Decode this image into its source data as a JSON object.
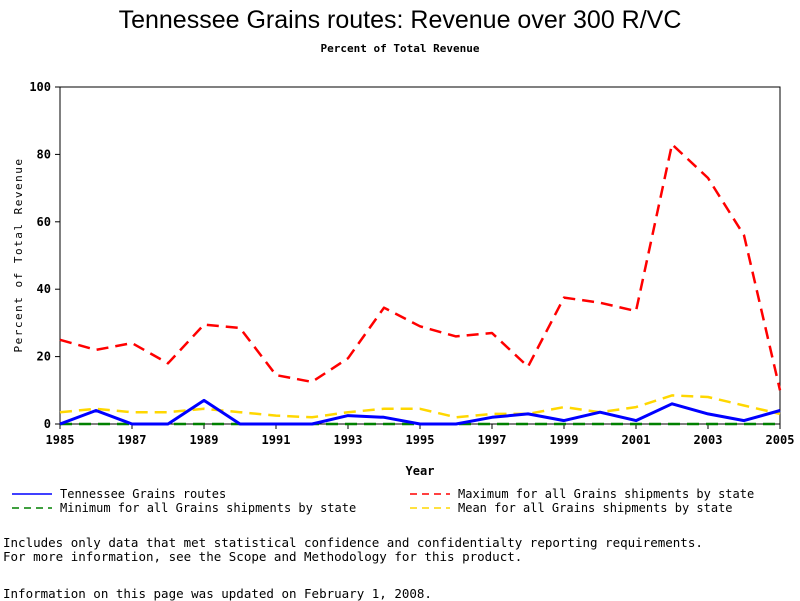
{
  "chart_data": {
    "type": "line",
    "title": "Tennessee Grains routes: Revenue over 300 R/VC",
    "subtitle": "Percent of Total Revenue",
    "xlabel": "Year",
    "ylabel": "Percent of Total Revenue",
    "xlim": [
      1985,
      2005
    ],
    "ylim": [
      0,
      100
    ],
    "x_ticks": [
      1985,
      1987,
      1989,
      1991,
      1993,
      1995,
      1997,
      1999,
      2001,
      2003,
      2005
    ],
    "y_ticks": [
      0,
      20,
      40,
      60,
      80,
      100
    ],
    "x": [
      1985,
      1986,
      1987,
      1988,
      1989,
      1990,
      1991,
      1992,
      1993,
      1994,
      1995,
      1996,
      1997,
      1998,
      1999,
      2000,
      2001,
      2002,
      2003,
      2004,
      2005
    ],
    "series": [
      {
        "name": "Tennessee Grains routes",
        "color": "#0000ff",
        "dash": "solid",
        "values": [
          0,
          4,
          0,
          0,
          7,
          0,
          0,
          0,
          2.5,
          2,
          0,
          0,
          2,
          3,
          1,
          3.5,
          1,
          6,
          3,
          1,
          4
        ]
      },
      {
        "name": "Maximum for all Grains shipments by state",
        "color": "#ff0000",
        "dash": "dashed",
        "values": [
          25,
          22,
          24,
          18,
          29.5,
          28.5,
          14.5,
          12.5,
          19.5,
          34.5,
          29,
          26,
          27,
          17,
          37.5,
          36,
          33.5,
          83,
          73,
          56,
          10
        ]
      },
      {
        "name": "Minimum for all Grains shipments by state",
        "color": "#008000",
        "dash": "dashed",
        "values": [
          0,
          0,
          0,
          0,
          0,
          0,
          0,
          0,
          0,
          0,
          0,
          0,
          0,
          0,
          0,
          0,
          0,
          0,
          0,
          0,
          0
        ]
      },
      {
        "name": "Mean for all Grains shipments by state",
        "color": "#ffd700",
        "dash": "dashed",
        "values": [
          3.5,
          4.5,
          3.5,
          3.5,
          4.5,
          3.5,
          2.5,
          2,
          3.5,
          4.5,
          4.5,
          2,
          3,
          3,
          5,
          3.5,
          5,
          8.5,
          8,
          5.5,
          3
        ]
      }
    ]
  },
  "notes": {
    "line1": "Includes only data that met statistical confidence and confidentialty reporting requirements.",
    "line2": "For more information, see the Scope and Methodology for this product.",
    "updated": "Information on this page was updated on February 1, 2008."
  }
}
